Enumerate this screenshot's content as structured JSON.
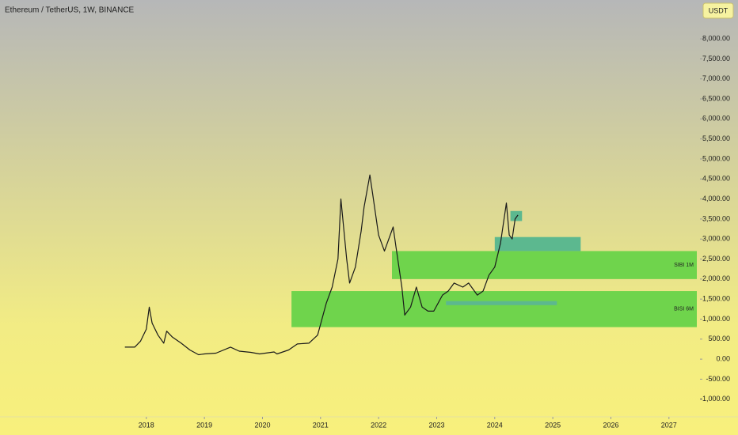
{
  "chart_data": {
    "type": "line",
    "title": "Ethereum / TetherUS, 1W, BINANCE",
    "currency": "USDT",
    "color": "#1a1a1a",
    "x": [
      2017.63,
      2017.8,
      2017.9,
      2018.0,
      2018.05,
      2018.1,
      2018.2,
      2018.3,
      2018.35,
      2018.45,
      2018.6,
      2018.75,
      2018.9,
      2019.0,
      2019.2,
      2019.45,
      2019.6,
      2019.8,
      2019.95,
      2020.2,
      2020.25,
      2020.45,
      2020.6,
      2020.8,
      2020.95,
      2021.1,
      2021.2,
      2021.3,
      2021.35,
      2021.45,
      2021.5,
      2021.6,
      2021.7,
      2021.75,
      2021.85,
      2021.9,
      2022.0,
      2022.1,
      2022.25,
      2022.3,
      2022.4,
      2022.45,
      2022.55,
      2022.65,
      2022.75,
      2022.85,
      2022.95,
      2023.1,
      2023.2,
      2023.3,
      2023.45,
      2023.55,
      2023.7,
      2023.8,
      2023.9,
      2024.0,
      2024.1,
      2024.2,
      2024.25,
      2024.3,
      2024.35,
      2024.4
    ],
    "values": [
      300,
      300,
      450,
      750,
      1300,
      900,
      600,
      400,
      700,
      550,
      400,
      230,
      110,
      130,
      150,
      300,
      200,
      170,
      130,
      180,
      130,
      230,
      380,
      400,
      600,
      1400,
      1800,
      2500,
      4000,
      2500,
      1900,
      2300,
      3200,
      3800,
      4600,
      4100,
      3100,
      2700,
      3300,
      2800,
      1800,
      1100,
      1300,
      1800,
      1300,
      1200,
      1200,
      1600,
      1700,
      1900,
      1800,
      1900,
      1600,
      1700,
      2100,
      2300,
      2900,
      3900,
      3100,
      3000,
      3500,
      3600
    ],
    "zones": [
      {
        "label": "SIBI 1M",
        "x": [
          2022.23,
          2027.48
        ],
        "y": [
          2000,
          2700
        ],
        "color": "#6fd44c"
      },
      {
        "label": "BISI 6M",
        "x": [
          2020.5,
          2027.48
        ],
        "y": [
          800,
          1700
        ],
        "color": "#6fd44c"
      },
      {
        "x": [
          2024.0,
          2025.48
        ],
        "y": [
          2700,
          3050
        ],
        "color": "#5cb88f"
      },
      {
        "x": [
          2024.27,
          2024.47
        ],
        "y": [
          3450,
          3700
        ],
        "color": "#5cb88f"
      },
      {
        "x": [
          2023.16,
          2025.07
        ],
        "y": [
          1350,
          1450
        ],
        "color": "#5cb88f"
      }
    ],
    "xlim": [
      2015.48,
      2027.48
    ],
    "ylim": [
      -1440,
      8970
    ],
    "xticks": [
      2018,
      2019,
      2020,
      2021,
      2022,
      2023,
      2024,
      2025,
      2026,
      2027
    ],
    "yticks": [
      {
        "value": -1000,
        "label": "-1,000.00"
      },
      {
        "value": -500,
        "label": "-500.00"
      },
      {
        "value": 0,
        "label": "0.00"
      },
      {
        "value": 500,
        "label": "500.00"
      },
      {
        "value": 1000,
        "label": "1,000.00"
      },
      {
        "value": 1500,
        "label": "1,500.00"
      },
      {
        "value": 2000,
        "label": "2,000.00"
      },
      {
        "value": 2500,
        "label": "2,500.00"
      },
      {
        "value": 3000,
        "label": "3,000.00"
      },
      {
        "value": 3500,
        "label": "3,500.00"
      },
      {
        "value": 4000,
        "label": "4,000.00"
      },
      {
        "value": 4500,
        "label": "4,500.00"
      },
      {
        "value": 5000,
        "label": "5,000.00"
      },
      {
        "value": 5500,
        "label": "5,500.00"
      },
      {
        "value": 6000,
        "label": "6,000.00"
      },
      {
        "value": 6500,
        "label": "6,500.00"
      },
      {
        "value": 7000,
        "label": "7,000.00"
      },
      {
        "value": 7500,
        "label": "7,500.00"
      },
      {
        "value": 8000,
        "label": "8,000.00"
      }
    ],
    "grid": false
  }
}
